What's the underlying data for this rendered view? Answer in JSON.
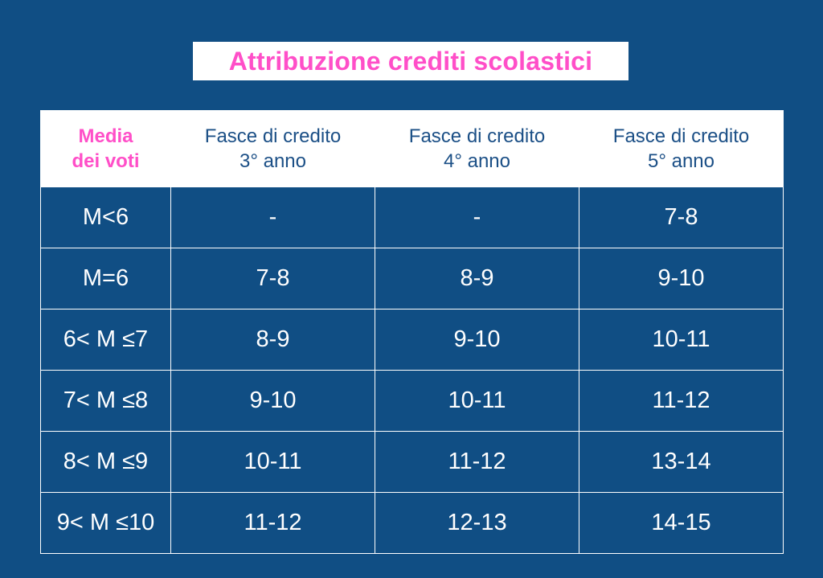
{
  "title": "Attribuzione crediti scolastici",
  "colors": {
    "background": "#104e84",
    "accent": "#ff4fc8",
    "header_text": "#1b4f86",
    "cell_text": "#ffffff"
  },
  "table": {
    "headers": [
      {
        "line1": "Media",
        "line2": "dei voti"
      },
      {
        "line1": "Fasce di credito",
        "line2": "3° anno"
      },
      {
        "line1": "Fasce di credito",
        "line2": "4° anno"
      },
      {
        "line1": "Fasce di credito",
        "line2": "5° anno"
      }
    ],
    "rows": [
      [
        "M<6",
        "-",
        "-",
        "7-8"
      ],
      [
        "M=6",
        "7-8",
        "8-9",
        "9-10"
      ],
      [
        "6< M ≤7",
        "8-9",
        "9-10",
        "10-11"
      ],
      [
        "7< M ≤8",
        "9-10",
        "10-11",
        "11-12"
      ],
      [
        "8< M ≤9",
        "10-11",
        "11-12",
        "13-14"
      ],
      [
        "9< M ≤10",
        "11-12",
        "12-13",
        "14-15"
      ]
    ]
  }
}
